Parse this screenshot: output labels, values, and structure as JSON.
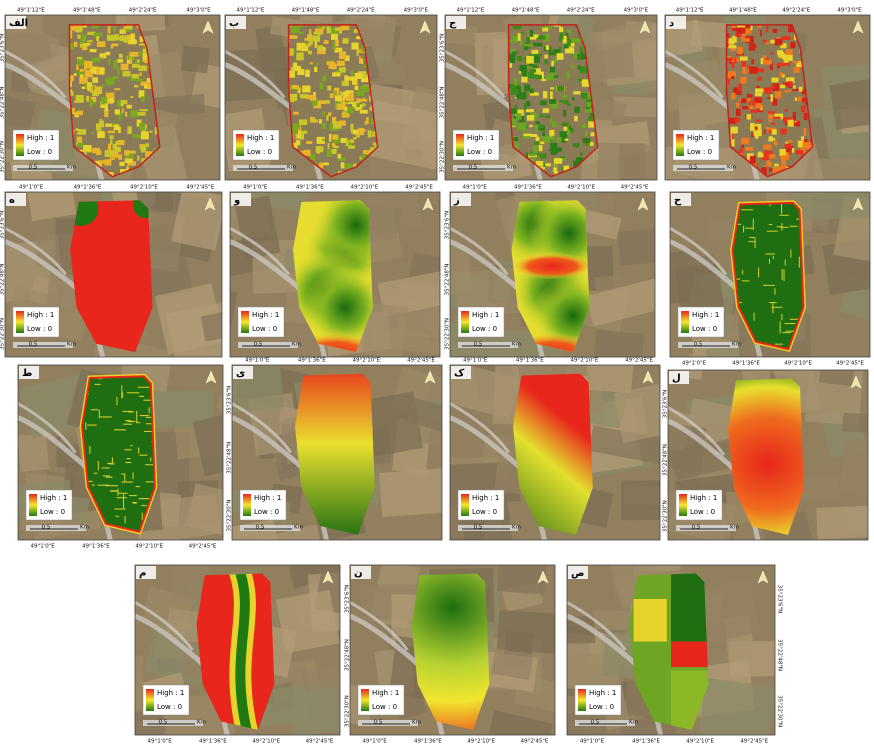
{
  "panels": [
    {
      "label": "الف",
      "high": "High : 1",
      "low": "Low : 0",
      "scale": "0.5",
      "unit": "Km",
      "x_labels": [
        "49°1'12\"E",
        "49°1'48\"E",
        "49°2'24\"E",
        "49°3'0\"E"
      ],
      "y_labels": [
        "35°23'6\"N",
        "35°22'48\"N",
        "35°22'30\"N"
      ]
    },
    {
      "label": "ب",
      "high": "High : 1",
      "low": "Low : 0",
      "scale": "0.5",
      "unit": "Km",
      "x_labels": [
        "49°1'12\"E",
        "49°1'48\"E",
        "49°2'24\"E",
        "49°3'0\"E"
      ]
    },
    {
      "label": "ج",
      "high": "High : 1",
      "low": "Low : 0",
      "scale": "0.5",
      "unit": "Km",
      "x_labels": [
        "49°1'12\"E",
        "49°1'48\"E",
        "49°2'24\"E",
        "49°3'0\"E"
      ],
      "y_labels": [
        "35°23'6\"N",
        "35°22'48\"N",
        "35°22'30\"N"
      ]
    },
    {
      "label": "د",
      "high": "High : 1",
      "low": "Low : 0",
      "scale": "0.5",
      "unit": "Km",
      "x_labels": [
        "49°1'12\"E",
        "49°1'48\"E",
        "49°2'24\"E",
        "49°3'0\"E"
      ]
    },
    {
      "label": "ه",
      "high": "High : 1",
      "low": "Low : 0",
      "scale": "0.5",
      "unit": "Km",
      "x_labels": [
        "49°1'0\"E",
        "49°1'36\"E",
        "49°2'10\"E",
        "49°2'45\"E"
      ],
      "y_labels": [
        "35°23'6\"N",
        "35°22'48\"N",
        "35°22'30\"N"
      ]
    },
    {
      "label": "و",
      "high": "High : 1",
      "low": "Low : 0",
      "scale": "0.5",
      "unit": "Km",
      "x_labels": [
        "49°1'0\"E",
        "49°1'36\"E",
        "49°2'10\"E",
        "49°2'45\"E"
      ]
    },
    {
      "label": "ز",
      "high": "High : 1",
      "low": "Low : 0",
      "scale": "0.5",
      "unit": "Km",
      "x_labels": [
        "49°1'0\"E",
        "49°1'36\"E",
        "49°2'10\"E",
        "49°2'45\"E"
      ],
      "y_labels": [
        "35°23'6\"N",
        "35°22'48\"N",
        "35°22'30\"N"
      ]
    },
    {
      "label": "ح",
      "high": "High : 1",
      "low": "Low : 0",
      "scale": "0.5",
      "unit": "Km",
      "x_labels": [
        "49°1'0\"E",
        "49°1'36\"E",
        "49°2'10\"E",
        "49°2'45\"E"
      ]
    },
    {
      "label": "ط",
      "high": "High : 1",
      "low": "Low : 0",
      "scale": "0.5",
      "unit": "Km",
      "x_labels": [
        "49°1'0\"E",
        "49°1'36\"E",
        "49°2'10\"E",
        "49°2'45\"E"
      ]
    },
    {
      "label": "ی",
      "high": "High : 1",
      "low": "Low : 0",
      "scale": "0.5",
      "unit": "Km",
      "x_labels": [
        "49°1'0\"E",
        "49°1'36\"E",
        "49°2'10\"E",
        "49°2'45\"E"
      ],
      "y_labels": [
        "35°23'6\"N",
        "35°22'48\"N",
        "35°22'30\"N"
      ]
    },
    {
      "label": "ک",
      "high": "High : 1",
      "low": "Low : 0",
      "scale": "0.5",
      "unit": "Km",
      "x_labels": [
        "49°1'0\"E",
        "49°1'36\"E",
        "49°2'10\"E",
        "49°2'45\"E"
      ]
    },
    {
      "label": "ل",
      "high": "High : 1",
      "low": "Low : 0",
      "scale": "0.5",
      "unit": "Km",
      "y_labels": [
        "35°23'6\"N",
        "35°22'48\"N",
        "35°22'30\"N"
      ]
    },
    {
      "label": "م",
      "high": "High : 1",
      "low": "Low : 0",
      "scale": "0.5",
      "unit": "Km",
      "x_labels": [
        "49°1'0\"E",
        "49°1'36\"E",
        "49°2'10\"E",
        "49°2'45\"E"
      ]
    },
    {
      "label": "ن",
      "high": "High : 1",
      "low": "Low : 0",
      "scale": "0.5",
      "unit": "Km",
      "x_labels": [
        "49°1'0\"E",
        "49°1'36\"E",
        "49°2'10\"E",
        "49°2'45\"E"
      ],
      "y_labels": [
        "35°23'6\"N",
        "35°22'48\"N",
        "35°22'30\"N"
      ]
    },
    {
      "label": "ص",
      "high": "High : 1",
      "low": "Low : 0",
      "scale": "0.5",
      "unit": "Km",
      "x_labels": [
        "49°1'0\"E",
        "49°1'36\"E",
        "49°2'10\"E",
        "49°2'45\"E"
      ],
      "y_labels": [
        "35°23'6\"N",
        "35°22'48\"N",
        "35°22'30\"N"
      ]
    }
  ]
}
